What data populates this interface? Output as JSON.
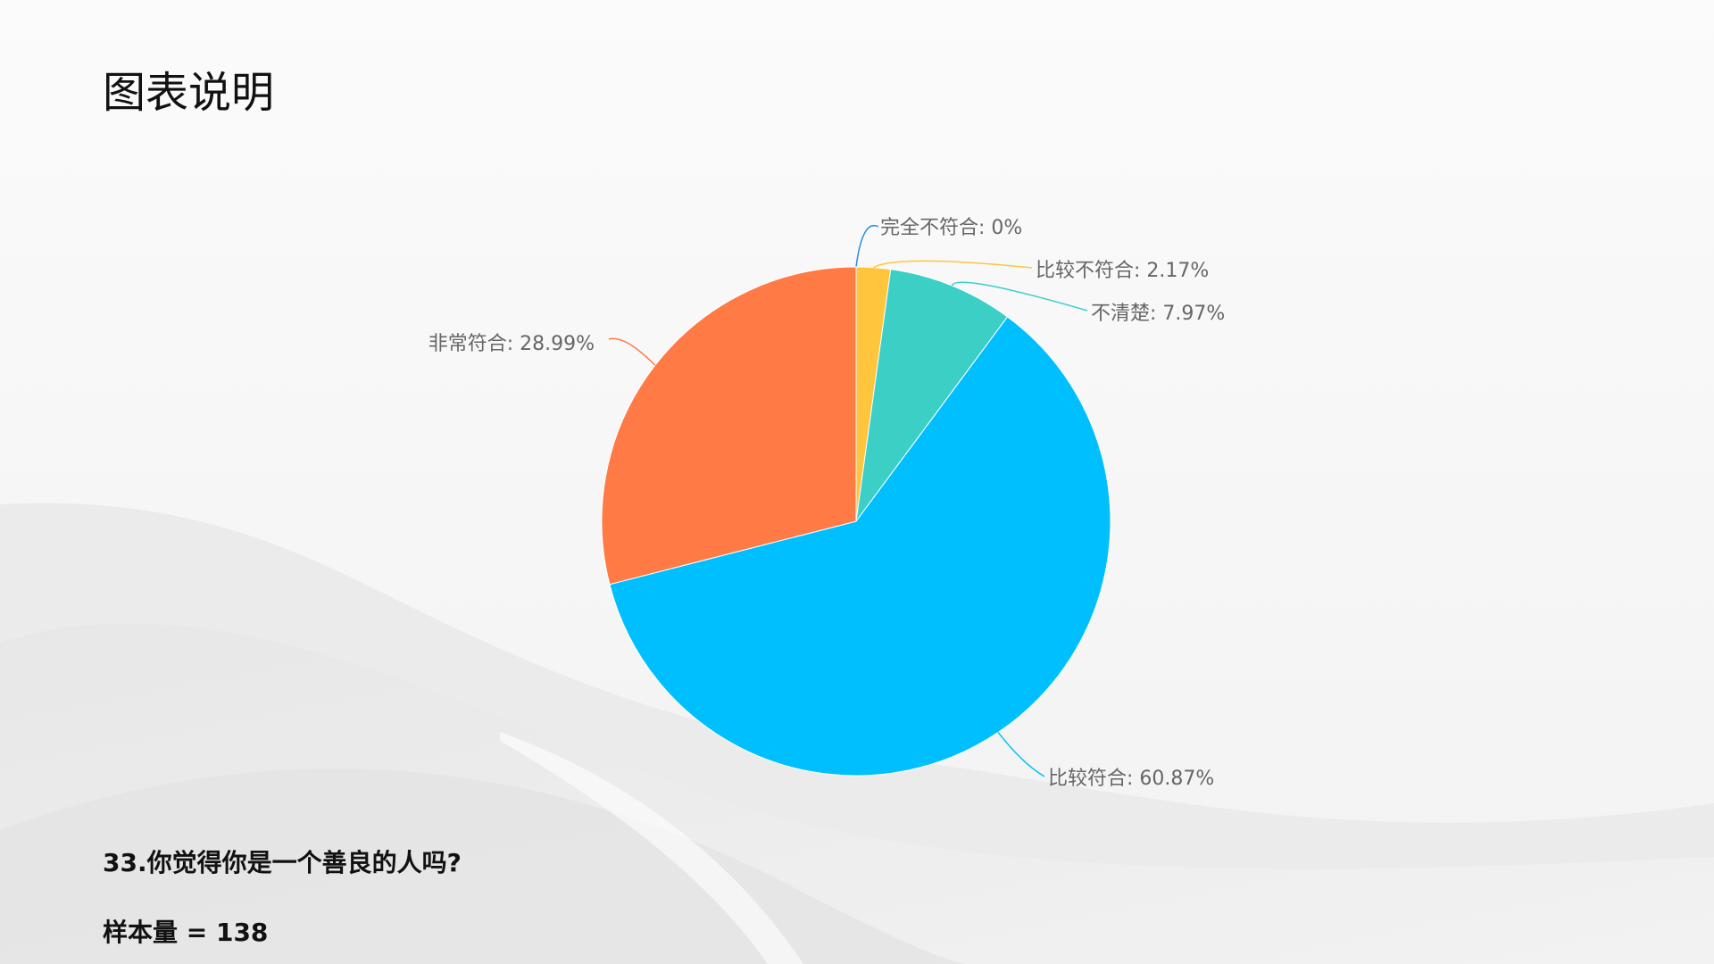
{
  "page": {
    "title": "图表说明",
    "question": "33.你觉得你是一个善良的人吗?",
    "sample": "样本量 = 138"
  },
  "chart_data": {
    "type": "pie",
    "slices": [
      {
        "name": "完全不符合",
        "value": 0,
        "label": "完全不符合: 0%",
        "color": "#2b8fd6"
      },
      {
        "name": "比较不符合",
        "value": 2.17,
        "label": "比较不符合: 2.17%",
        "color": "#ffc53d"
      },
      {
        "name": "不清楚",
        "value": 7.97,
        "label": "不清楚: 7.97%",
        "color": "#3bcfc6"
      },
      {
        "name": "比较符合",
        "value": 60.87,
        "label": "比较符合: 60.87%",
        "color": "#00bfff"
      },
      {
        "name": "非常符合",
        "value": 28.99,
        "label": "非常符合: 28.99%",
        "color": "#ff7a45"
      }
    ]
  }
}
